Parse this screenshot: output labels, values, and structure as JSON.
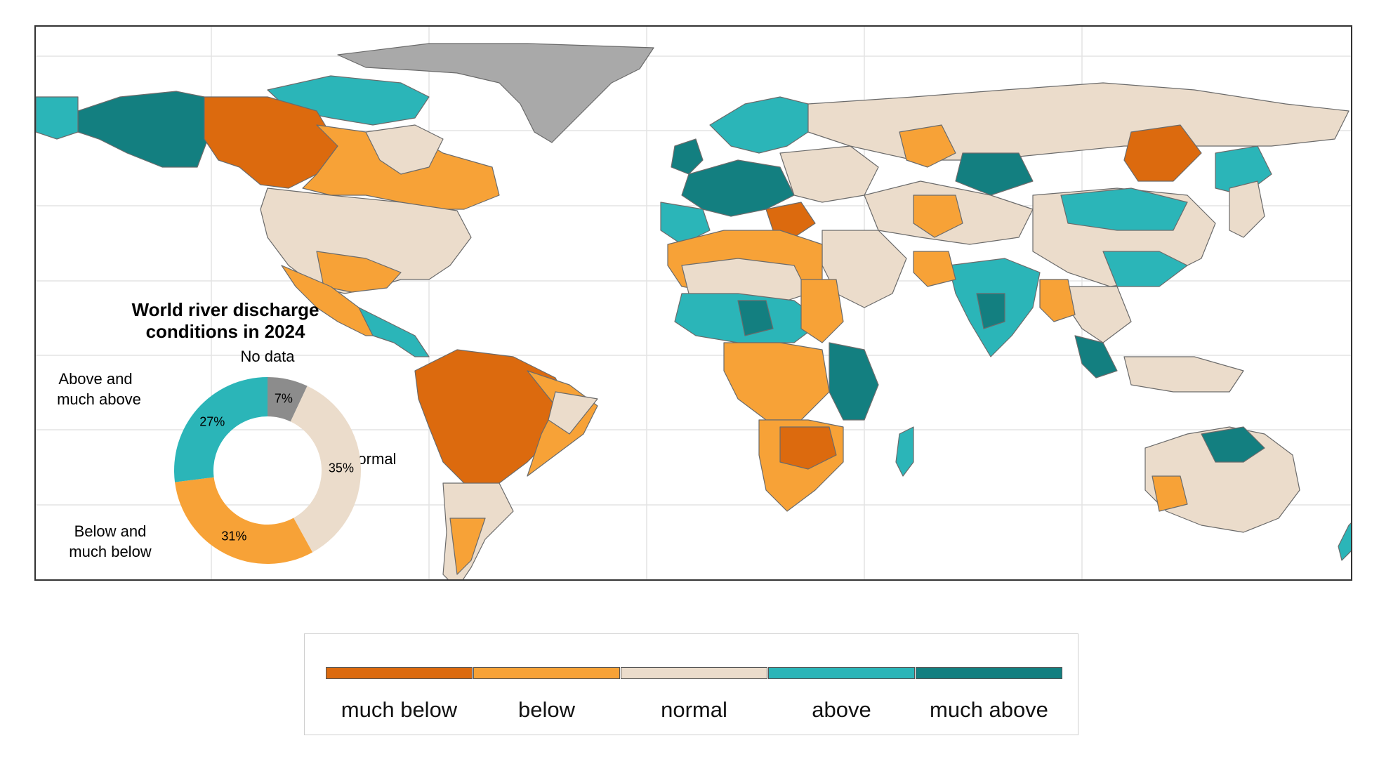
{
  "colors": {
    "much_below": "#dc6a0e",
    "below": "#f7a237",
    "normal": "#ebdccb",
    "above": "#2bb5b8",
    "much_above": "#137f80",
    "no_data": "#a9a9a9",
    "no_data_donut": "#8c8c8c",
    "gridline": "#e3e3e3",
    "ocean": "#ffffff"
  },
  "inset": {
    "title_line1": "World river discharge",
    "title_line2": "conditions in 2024",
    "labels": {
      "no_data": "No data",
      "above_line1": "Above and",
      "above_line2": "much above",
      "normal": "Normal",
      "below_line1": "Below and",
      "below_line2": "much below"
    }
  },
  "chart_data": {
    "type": "pie",
    "style": "donut",
    "slices": [
      {
        "label": "No data",
        "value": 7,
        "value_label": "7%",
        "color": "#8c8c8c"
      },
      {
        "label": "Normal",
        "value": 35,
        "value_label": "35%",
        "color": "#ebdccb"
      },
      {
        "label": "Below and much below",
        "value": 31,
        "value_label": "31%",
        "color": "#f7a237"
      },
      {
        "label": "Above and much above",
        "value": 27,
        "value_label": "27%",
        "color": "#2bb5b8"
      }
    ]
  },
  "legend": {
    "items": [
      {
        "label": "much below",
        "color": "#dc6a0e"
      },
      {
        "label": "below",
        "color": "#f7a237"
      },
      {
        "label": "normal",
        "color": "#ebdccb"
      },
      {
        "label": "above",
        "color": "#2bb5b8"
      },
      {
        "label": "much above",
        "color": "#137f80"
      }
    ]
  }
}
